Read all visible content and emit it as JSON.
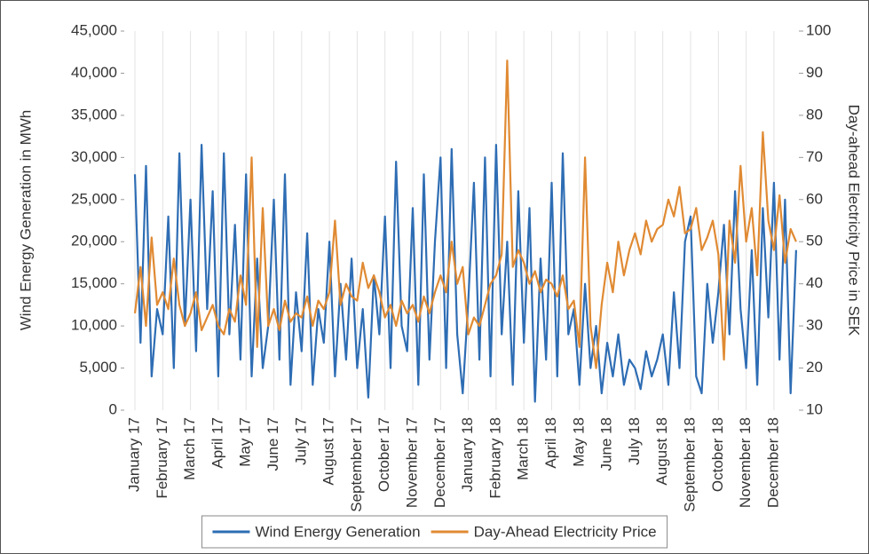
{
  "chart_data": {
    "type": "line",
    "y_label": "Wind Energy Generation in MWh",
    "y2_label": "Day-ahead Electricity Price in SEK",
    "categories": [
      "January 17",
      null,
      null,
      null,
      null,
      "February 17",
      null,
      null,
      null,
      null,
      "March 17",
      null,
      null,
      null,
      null,
      "April 17",
      null,
      null,
      null,
      null,
      "May 17",
      null,
      null,
      null,
      null,
      "June 17",
      null,
      null,
      null,
      null,
      "July 17",
      null,
      null,
      null,
      null,
      "August 17",
      null,
      null,
      null,
      null,
      "September 17",
      null,
      null,
      null,
      null,
      "October 17",
      null,
      null,
      null,
      null,
      "November 17",
      null,
      null,
      null,
      null,
      "December 17",
      null,
      null,
      null,
      null,
      "January 18",
      null,
      null,
      null,
      null,
      "February 18",
      null,
      null,
      null,
      null,
      "March 18",
      null,
      null,
      null,
      null,
      "April 18",
      null,
      null,
      null,
      null,
      "May 18",
      null,
      null,
      null,
      null,
      "June 18",
      null,
      null,
      null,
      null,
      "July 18",
      null,
      null,
      null,
      null,
      "August 18",
      null,
      null,
      null,
      null,
      "September 18",
      null,
      null,
      null,
      null,
      "October 18",
      null,
      null,
      null,
      null,
      "November 18",
      null,
      null,
      null,
      null,
      "December 18",
      null,
      null,
      null,
      null
    ],
    "series": [
      {
        "name": "Wind Energy Generation",
        "color": "#2e6db4",
        "values": [
          28000,
          8000,
          29000,
          4000,
          12000,
          9000,
          23000,
          5000,
          30500,
          10000,
          25000,
          7000,
          31500,
          12000,
          26000,
          4000,
          30500,
          9000,
          22000,
          6000,
          28000,
          4000,
          18000,
          5000,
          10000,
          25000,
          6000,
          28000,
          3000,
          14000,
          7000,
          21000,
          3000,
          12000,
          8000,
          20000,
          4000,
          15000,
          6000,
          18000,
          5000,
          12000,
          1500,
          16000,
          9000,
          23000,
          5000,
          29500,
          10000,
          7000,
          24000,
          3000,
          28000,
          6000,
          20000,
          30000,
          5000,
          31000,
          9000,
          2000,
          13000,
          27000,
          6000,
          30000,
          4000,
          31500,
          9000,
          20000,
          3000,
          26000,
          8000,
          24000,
          1000,
          18000,
          6000,
          27000,
          4000,
          30500,
          9000,
          12000,
          3000,
          15000,
          5000,
          10000,
          2000,
          8000,
          4000,
          9000,
          3000,
          6000,
          5000,
          2500,
          7000,
          4000,
          6000,
          9000,
          3000,
          14000,
          5000,
          20000,
          23000,
          4000,
          2000,
          15000,
          8000,
          14000,
          22000,
          9000,
          26000,
          12000,
          5000,
          19000,
          3000,
          24000,
          11000,
          27000,
          6000,
          25000,
          2000,
          19000
        ]
      },
      {
        "name": "Day-Ahead Electricity Price",
        "color": "#e08a33",
        "axis": "y2",
        "values": [
          33,
          44,
          30,
          51,
          35,
          38,
          34,
          46,
          35,
          30,
          33,
          38,
          29,
          32,
          35,
          30,
          28,
          34,
          31,
          42,
          35,
          70,
          25,
          58,
          30,
          34,
          29,
          36,
          31,
          33,
          32,
          37,
          30,
          36,
          34,
          38,
          55,
          35,
          40,
          37,
          36,
          45,
          39,
          42,
          38,
          32,
          35,
          30,
          36,
          33,
          35,
          31,
          37,
          33,
          38,
          42,
          38,
          50,
          40,
          44,
          28,
          32,
          30,
          35,
          40,
          42,
          47,
          93,
          44,
          48,
          45,
          40,
          43,
          38,
          41,
          40,
          37,
          42,
          34,
          36,
          25,
          70,
          30,
          20,
          35,
          45,
          38,
          50,
          42,
          48,
          52,
          47,
          55,
          50,
          53,
          54,
          60,
          56,
          63,
          52,
          53,
          58,
          48,
          51,
          55,
          47,
          22,
          55,
          45,
          68,
          50,
          58,
          42,
          76,
          55,
          48,
          61,
          45,
          53,
          50
        ]
      }
    ],
    "ylim": [
      0,
      45000
    ],
    "yticks": [
      0,
      {
        "value": 5000,
        "label": "5,000"
      },
      {
        "value": 10000,
        "label": "10,000"
      },
      {
        "value": 15000,
        "label": "15,000"
      },
      {
        "value": 20000,
        "label": "20,000"
      },
      {
        "value": 25000,
        "label": "25,000"
      },
      {
        "value": 30000,
        "label": "30,000"
      },
      {
        "value": 35000,
        "label": "35,000"
      },
      {
        "value": 40000,
        "label": "40,000"
      },
      {
        "value": 45000,
        "label": "45,000"
      }
    ],
    "y2lim": [
      10,
      100
    ],
    "y2ticks": [
      10,
      20,
      30,
      40,
      50,
      60,
      70,
      80,
      90,
      100
    ],
    "grid": true,
    "legend": "bottom"
  }
}
